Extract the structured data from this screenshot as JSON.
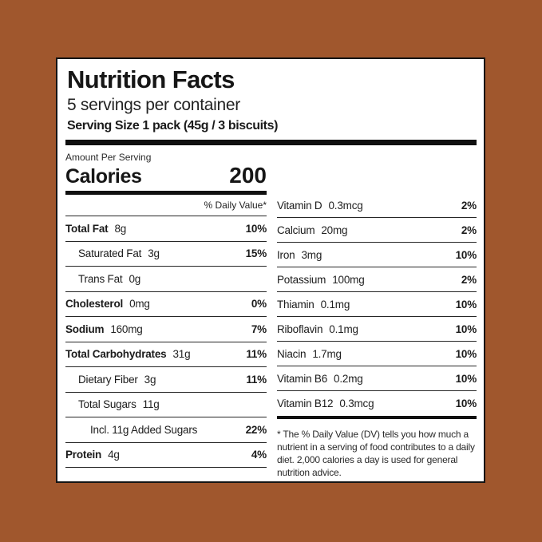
{
  "background_color": "#A0572D",
  "label": {
    "title": "Nutrition Facts",
    "servings_per_container": "5 servings per container",
    "serving_size": "Serving Size 1 pack (45g / 3 biscuits)",
    "amount_per_serving_label": "Amount Per Serving",
    "calories_label": "Calories",
    "calories_value": "200",
    "daily_value_header": "% Daily Value*",
    "footnote": "* The % Daily Value (DV) tells you how much a nutrient in a serving of food contributes to a daily diet. 2,000 calories a day is used for general nutrition advice."
  },
  "nutrients_left": [
    {
      "name": "Total Fat",
      "amount": "8g",
      "daily_value": "10%",
      "bold": true,
      "indent": 0
    },
    {
      "name": "Saturated Fat",
      "amount": "3g",
      "daily_value": "15%",
      "bold": false,
      "indent": 1
    },
    {
      "name": "Trans Fat",
      "amount": "0g",
      "daily_value": "",
      "bold": false,
      "indent": 1
    },
    {
      "name": "Cholesterol",
      "amount": "0mg",
      "daily_value": "0%",
      "bold": true,
      "indent": 0
    },
    {
      "name": "Sodium",
      "amount": "160mg",
      "daily_value": "7%",
      "bold": true,
      "indent": 0
    },
    {
      "name": "Total Carbohydrates",
      "amount": "31g",
      "daily_value": "11%",
      "bold": true,
      "indent": 0
    },
    {
      "name": "Dietary Fiber",
      "amount": "3g",
      "daily_value": "11%",
      "bold": false,
      "indent": 1
    },
    {
      "name": "Total Sugars",
      "amount": "11g",
      "daily_value": "",
      "bold": false,
      "indent": 1
    },
    {
      "name": "Incl. 11g Added Sugars",
      "amount": "",
      "daily_value": "22%",
      "bold": false,
      "indent": 2
    },
    {
      "name": "Protein",
      "amount": "4g",
      "daily_value": "4%",
      "bold": true,
      "indent": 0
    }
  ],
  "nutrients_right": [
    {
      "name": "Vitamin D",
      "amount": "0.3mcg",
      "daily_value": "2%",
      "bold": false,
      "indent": 0
    },
    {
      "name": "Calcium",
      "amount": "20mg",
      "daily_value": "2%",
      "bold": false,
      "indent": 0
    },
    {
      "name": "Iron",
      "amount": "3mg",
      "daily_value": "10%",
      "bold": false,
      "indent": 0
    },
    {
      "name": "Potassium",
      "amount": "100mg",
      "daily_value": "2%",
      "bold": false,
      "indent": 0
    },
    {
      "name": "Thiamin",
      "amount": "0.1mg",
      "daily_value": "10%",
      "bold": false,
      "indent": 0
    },
    {
      "name": "Riboflavin",
      "amount": "0.1mg",
      "daily_value": "10%",
      "bold": false,
      "indent": 0
    },
    {
      "name": "Niacin",
      "amount": "1.7mg",
      "daily_value": "10%",
      "bold": false,
      "indent": 0
    },
    {
      "name": "Vitamin B6",
      "amount": "0.2mg",
      "daily_value": "10%",
      "bold": false,
      "indent": 0
    },
    {
      "name": "Vitamin B12",
      "amount": "0.3mcg",
      "daily_value": "10%",
      "bold": false,
      "indent": 0
    }
  ]
}
